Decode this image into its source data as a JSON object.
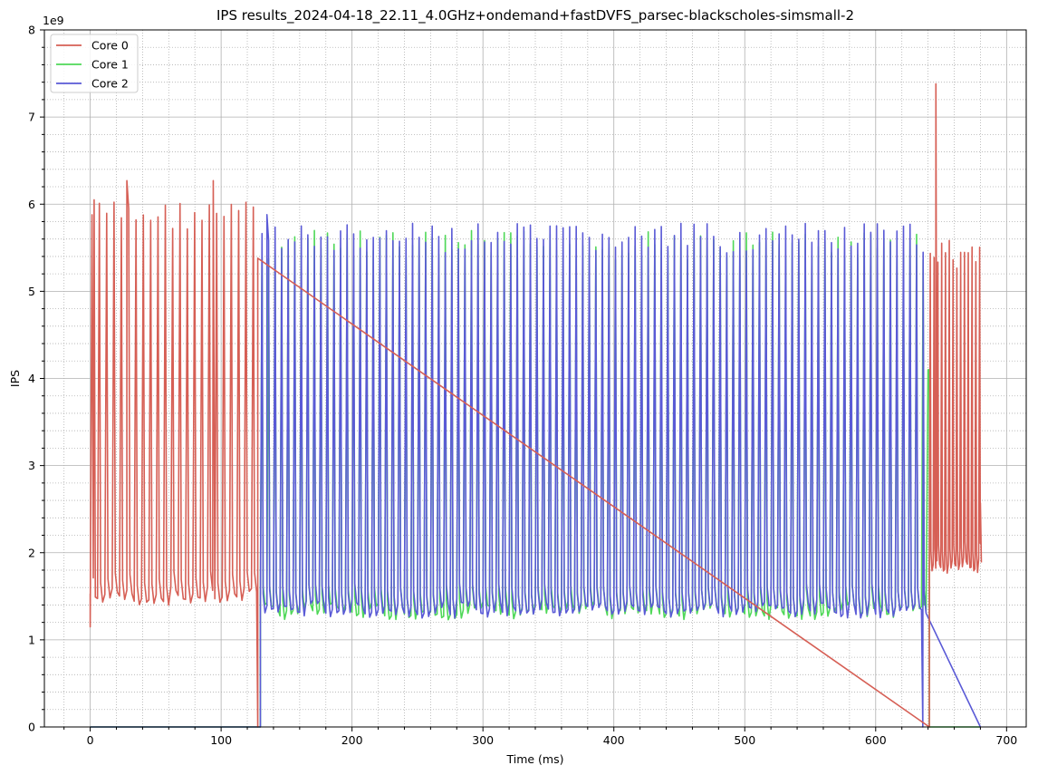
{
  "chart_data": {
    "type": "line",
    "title": "IPS results_2024-04-18_22.11_4.0GHz+ondemand+fastDVFS_parsec-blackscholes-simsmall-2",
    "xlabel": "Time (ms)",
    "ylabel": "IPS",
    "y_scale_label": "1e9",
    "xlim": [
      -35,
      715
    ],
    "ylim": [
      0,
      8
    ],
    "x_ticks": [
      0,
      100,
      200,
      300,
      400,
      500,
      600,
      700
    ],
    "y_ticks": [
      0,
      1,
      2,
      3,
      4,
      5,
      6,
      7,
      8
    ],
    "grid": "major solid + minor dotted",
    "legend": "top-left",
    "series": [
      {
        "name": "Core 0",
        "color": "#d65f55",
        "phases": [
          {
            "from_ms": 0,
            "to_ms": 128,
            "pattern": "oscillating",
            "low": 1.52,
            "high": 6.05,
            "period_ms": 5.6
          },
          {
            "from_ms": 128,
            "to_ms": 641,
            "pattern": "flat",
            "value": 0.0
          },
          {
            "from_ms": 641,
            "to_ms": 680,
            "pattern": "oscillating",
            "low": 1.88,
            "high": 5.6,
            "period_ms": 2.9
          }
        ],
        "peaks": [
          [
            0,
            1.15
          ],
          [
            3,
            6.05
          ],
          [
            28,
            6.27
          ],
          [
            94,
            6.27
          ],
          [
            128,
            5.38
          ],
          [
            646,
            7.38
          ],
          [
            680,
            2.57
          ]
        ]
      },
      {
        "name": "Core 1",
        "color": "#4fd858",
        "phases": [
          {
            "from_ms": 0,
            "to_ms": 130,
            "pattern": "flat",
            "value": 0.0
          },
          {
            "from_ms": 130,
            "to_ms": 637,
            "pattern": "oscillating",
            "low": 1.36,
            "high": 5.7,
            "period_ms": 5.0
          },
          {
            "from_ms": 637,
            "to_ms": 641,
            "pattern": "ramp",
            "from": 1.4,
            "to": 4.1
          },
          {
            "from_ms": 641,
            "to_ms": 680,
            "pattern": "flat",
            "value": 0.0
          }
        ],
        "peaks": [
          [
            640,
            4.1
          ]
        ]
      },
      {
        "name": "Core 2",
        "color": "#5a5ad6",
        "phases": [
          {
            "from_ms": 0,
            "to_ms": 130,
            "pattern": "flat",
            "value": 0.0
          },
          {
            "from_ms": 130,
            "to_ms": 636,
            "pattern": "oscillating",
            "low": 1.38,
            "high": 5.78,
            "period_ms": 5.0
          },
          {
            "from_ms": 636,
            "to_ms": 680,
            "pattern": "flat",
            "value": 0.0
          }
        ],
        "peaks": [
          [
            135,
            5.88
          ]
        ]
      }
    ]
  }
}
